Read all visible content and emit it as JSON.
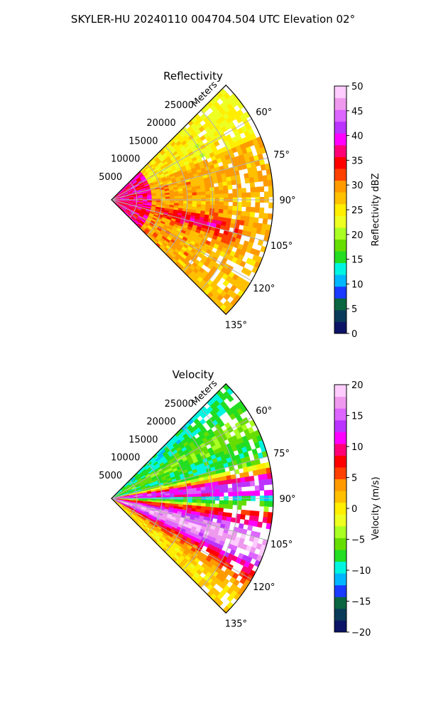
{
  "figure": {
    "title": "SKYLER-HU  20240110  004704.504 UTC Elevation 02°"
  },
  "chart_data": [
    {
      "type": "heatmap",
      "projection": "polar-sector",
      "title": "Reflectivity",
      "range_label": "Meters",
      "range_ticks": [
        5000,
        10000,
        15000,
        20000,
        25000
      ],
      "range_tick_labels": [
        "5000",
        "10000",
        "15000",
        "20000",
        "25000"
      ],
      "range_max_m": 32000,
      "azimuth_range_deg": [
        45,
        135
      ],
      "azimuth_ticks": [
        60,
        75,
        90,
        105,
        120,
        135
      ],
      "azimuth_tick_labels": [
        "60°",
        "75°",
        "90°",
        "105°",
        "120°",
        "135°"
      ],
      "grid": true,
      "colorbar": {
        "label": "Reflectivity dBZ",
        "range": [
          0,
          50
        ],
        "ticks": [
          0,
          5,
          10,
          15,
          20,
          25,
          30,
          35,
          40,
          45,
          50
        ],
        "tick_labels": [
          "0",
          "5",
          "10",
          "15",
          "20",
          "25",
          "30",
          "35",
          "40",
          "45",
          "50"
        ]
      },
      "colormap": [
        "#0b1466",
        "#0a3a5a",
        "#0a6640",
        "#1a3aff",
        "#00b7ff",
        "#00f5e0",
        "#22dd22",
        "#66dd00",
        "#aaff22",
        "#eeff22",
        "#ffee00",
        "#ffc000",
        "#ff9a00",
        "#ff4000",
        "#ff0000",
        "#ff0077",
        "#ff00ff",
        "#bb33ff",
        "#dd66ff",
        "#ee99ee",
        "#ffccff"
      ]
    },
    {
      "type": "heatmap",
      "projection": "polar-sector",
      "title": "Velocity",
      "range_label": "Meters",
      "range_ticks": [
        5000,
        10000,
        15000,
        20000,
        25000
      ],
      "range_tick_labels": [
        "5000",
        "10000",
        "15000",
        "20000",
        "25000"
      ],
      "range_max_m": 32000,
      "azimuth_range_deg": [
        45,
        135
      ],
      "azimuth_ticks": [
        60,
        75,
        90,
        105,
        120,
        135
      ],
      "azimuth_tick_labels": [
        "60°",
        "75°",
        "90°",
        "105°",
        "120°",
        "135°"
      ],
      "grid": true,
      "colorbar": {
        "label": "Velocity (m/s)",
        "range": [
          -20,
          20
        ],
        "ticks": [
          -20,
          -15,
          -10,
          -5,
          0,
          5,
          10,
          15,
          20
        ],
        "tick_labels": [
          "−20",
          "−15",
          "−10",
          "−5",
          "0",
          "5",
          "10",
          "15",
          "20"
        ]
      },
      "colormap": [
        "#0b1466",
        "#0a3a5a",
        "#0a6640",
        "#1a3aff",
        "#00b7ff",
        "#00f5e0",
        "#22dd22",
        "#66dd00",
        "#aaff22",
        "#eeff22",
        "#ffee00",
        "#ffc000",
        "#ff9a00",
        "#ff4000",
        "#ff0000",
        "#ff0077",
        "#ff00ff",
        "#bb33ff",
        "#dd66ff",
        "#ee99ee",
        "#ffccff"
      ]
    }
  ]
}
